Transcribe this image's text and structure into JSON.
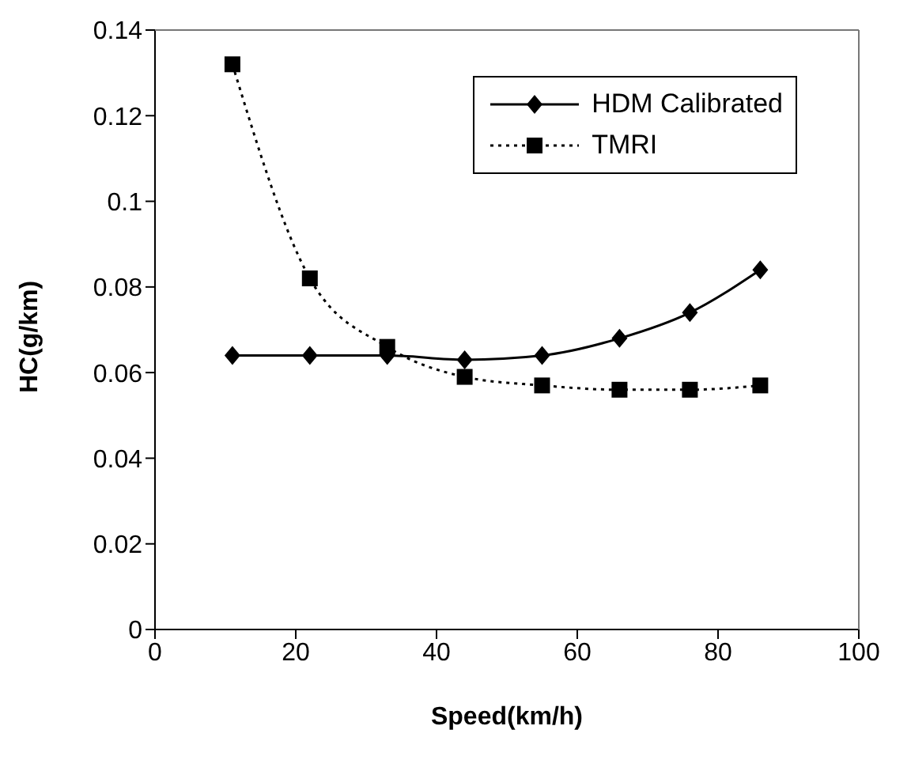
{
  "chart_data": {
    "type": "line",
    "xlabel": "Speed(km/h)",
    "ylabel": "HC(g/km)",
    "x": [
      11,
      22,
      33,
      44,
      55,
      66,
      76,
      86
    ],
    "series": [
      {
        "name": "HDM Calibrated",
        "color": "#000000",
        "values": [
          0.064,
          0.064,
          0.064,
          0.063,
          0.064,
          0.068,
          0.074,
          0.084
        ],
        "marker": "diamond",
        "line_style": "solid"
      },
      {
        "name": "TMRI",
        "color": "#000000",
        "values": [
          0.132,
          0.082,
          0.066,
          0.059,
          0.057,
          0.056,
          0.056,
          0.057
        ],
        "marker": "square",
        "line_style": "dotted"
      }
    ],
    "xlim": [
      0,
      100
    ],
    "xticks": [
      0,
      20,
      40,
      60,
      80,
      100
    ],
    "ylim": [
      0,
      0.14
    ],
    "yticks": [
      0,
      0.02,
      0.04,
      0.06,
      0.08,
      0.1,
      0.12,
      0.14
    ],
    "grid": false,
    "legend": "top right"
  }
}
